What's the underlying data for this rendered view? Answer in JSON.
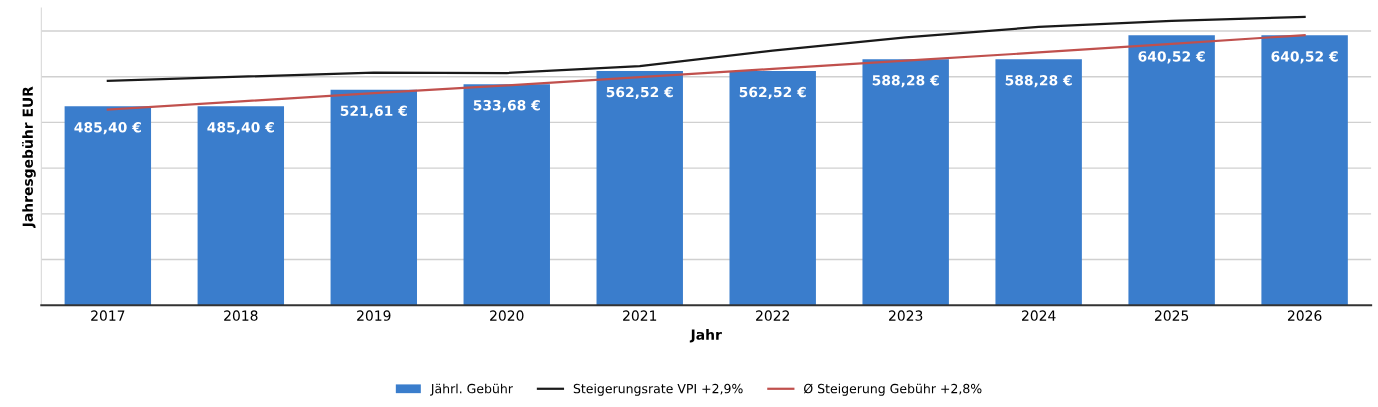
{
  "chart_data": {
    "type": "bar",
    "xlabel": "Jahr",
    "ylabel": "Jahresgebühr EUR",
    "categories": [
      "2017",
      "2018",
      "2019",
      "2020",
      "2021",
      "2022",
      "2023",
      "2024",
      "2025",
      "2026"
    ],
    "series": [
      {
        "name": "Jährl. Gebühr",
        "color": "#3a7dcc",
        "values": [
          485.4,
          485.4,
          521.61,
          533.68,
          562.52,
          562.52,
          588.28,
          588.28,
          640.52,
          640.52
        ],
        "value_labels": [
          "485,40 €",
          "485,40 €",
          "521,61 €",
          "533,68 €",
          "562,52 €",
          "562,52 €",
          "588,28 €",
          "588,28 €",
          "640,52 €",
          "640,52 €"
        ]
      },
      {
        "name": "Steigerungsrate VPI +2,9%",
        "type": "line",
        "color": "#1a1a1a",
        "values": [
          541,
          550,
          559,
          558,
          573,
          607,
          636,
          659,
          672,
          681
        ]
      },
      {
        "name": "Ø Steigerung Gebühr +2,8%",
        "type": "line",
        "color": "#c0504d",
        "values": [
          478,
          496,
          514,
          531,
          549,
          567,
          585,
          603,
          622,
          641
        ]
      }
    ],
    "ylim": [
      50,
      700
    ],
    "yticks": [
      {
        "value": 150,
        "label": null
      },
      {
        "value": 250,
        "label": null
      },
      {
        "value": 350,
        "label": null
      },
      {
        "value": 450,
        "label": null
      },
      {
        "value": 550,
        "label": null
      },
      {
        "value": 650,
        "label": null
      }
    ],
    "tick_labels": "x",
    "grid": "y",
    "legend": "bottom",
    "marker": "none",
    "line_style": "solid"
  }
}
